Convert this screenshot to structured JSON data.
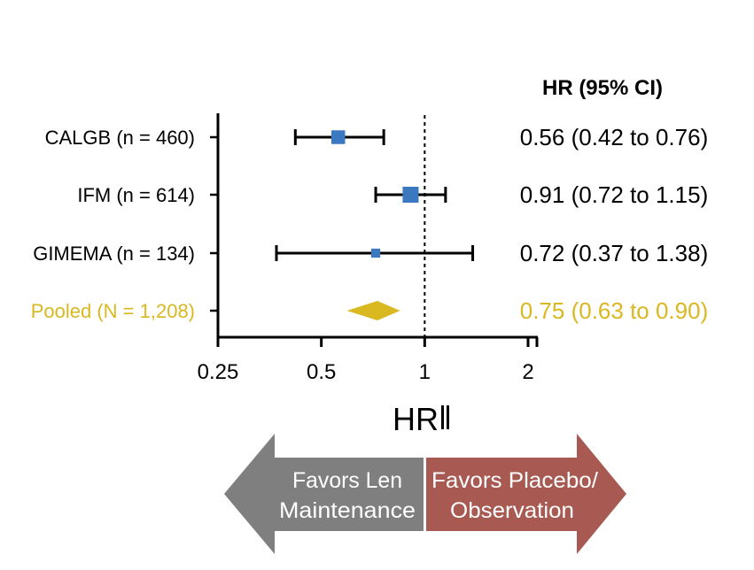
{
  "chart_data": {
    "type": "forest",
    "column_header": "HR (95% CI)",
    "xlabel": "HR",
    "x_scale": "log2",
    "xlim": [
      0.25,
      2.2
    ],
    "x_ticks": [
      0.25,
      0.5,
      1,
      2
    ],
    "x_tick_labels": [
      "0.25",
      "0.5",
      "1",
      "2"
    ],
    "reference_line": 1,
    "studies": [
      {
        "label": "CALGB (n = 460)",
        "hr": 0.56,
        "lo": 0.42,
        "hi": 0.76,
        "weight": 460,
        "ci_text": "0.56 (0.42 to 0.76)"
      },
      {
        "label": "IFM (n = 614)",
        "hr": 0.91,
        "lo": 0.72,
        "hi": 1.15,
        "weight": 614,
        "ci_text": "0.91 (0.72 to 1.15)"
      },
      {
        "label": "GIMEMA (n = 134)",
        "hr": 0.72,
        "lo": 0.37,
        "hi": 1.38,
        "weight": 134,
        "ci_text": "0.72 (0.37 to 1.38)"
      }
    ],
    "pooled": {
      "label": "Pooled (N = 1,208)",
      "hr": 0.75,
      "lo": 0.63,
      "hi": 0.9,
      "ci_text": "0.75 (0.63 to 0.90)"
    },
    "arrows": {
      "left": {
        "line1": "Favors Len",
        "line2": "Maintenance"
      },
      "right": {
        "line1": "Favors Placebo/",
        "line2": "Observation"
      }
    }
  },
  "colors": {
    "axis": "#000000",
    "marker": "#3a78bf",
    "pooled": "#d9b820",
    "arrow_left": "#7f7f7f",
    "arrow_right": "#a85a52",
    "arrow_text": "#ffffff"
  }
}
